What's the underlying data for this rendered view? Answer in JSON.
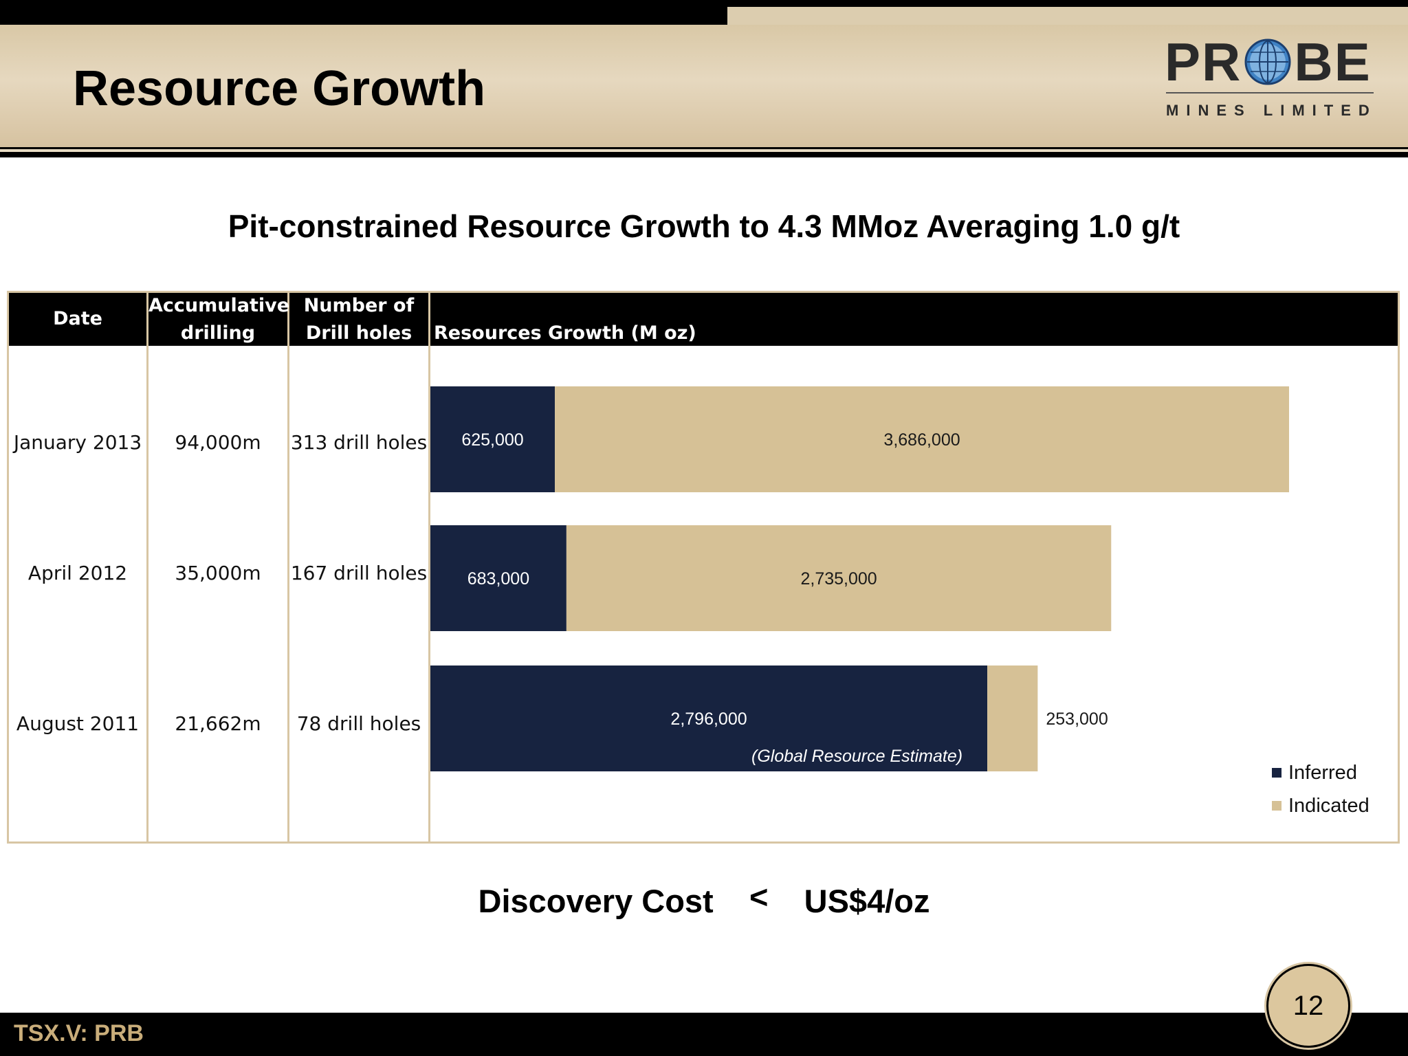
{
  "header": {
    "title": "Resource Growth",
    "logo": {
      "word": "PROBE",
      "subtitle": "MINES LIMITED"
    }
  },
  "subtitle": "Pit-constrained Resource Growth to 4.3 MMoz Averaging 1.0 g/t",
  "table": {
    "headers": {
      "date": "Date",
      "drilling_line1": "Accumulative",
      "drilling_line2": "drilling",
      "holes_line1": "Number of",
      "holes_line2": "Drill holes",
      "chart": "Resources Growth (M oz)"
    },
    "rows": [
      {
        "date": "January 2013",
        "drilling": "94,000m",
        "holes": "313 drill holes"
      },
      {
        "date": "April 2012",
        "drilling": "35,000m",
        "holes": "167 drill holes"
      },
      {
        "date": "August 2011",
        "drilling": "21,662m",
        "holes": "78 drill holes"
      }
    ]
  },
  "chart_data": {
    "type": "bar",
    "orientation": "horizontal",
    "stacked": true,
    "categories": [
      "January 2013",
      "April 2012",
      "August 2011"
    ],
    "series": [
      {
        "name": "Inferred",
        "color": "#172340",
        "values": [
          625000,
          683000,
          2796000
        ],
        "labels": [
          "625,000",
          "683,000",
          "2,796,000"
        ]
      },
      {
        "name": "Indicated",
        "color": "#d6c196",
        "values": [
          3686000,
          2735000,
          253000
        ],
        "labels": [
          "3,686,000",
          "2,735,000",
          "253,000"
        ]
      }
    ],
    "annotations": [
      {
        "category": "August 2011",
        "text": "(Global Resource Estimate)"
      }
    ],
    "title": "Resources Growth (M oz)",
    "xlim": [
      0,
      4300000
    ],
    "legend": "bottom-right",
    "grid": false
  },
  "discovery": {
    "label": "Discovery Cost",
    "symbol": "<",
    "value": "US$4/oz"
  },
  "footer": {
    "ticker": "TSX.V:  PRB",
    "page": "12"
  }
}
